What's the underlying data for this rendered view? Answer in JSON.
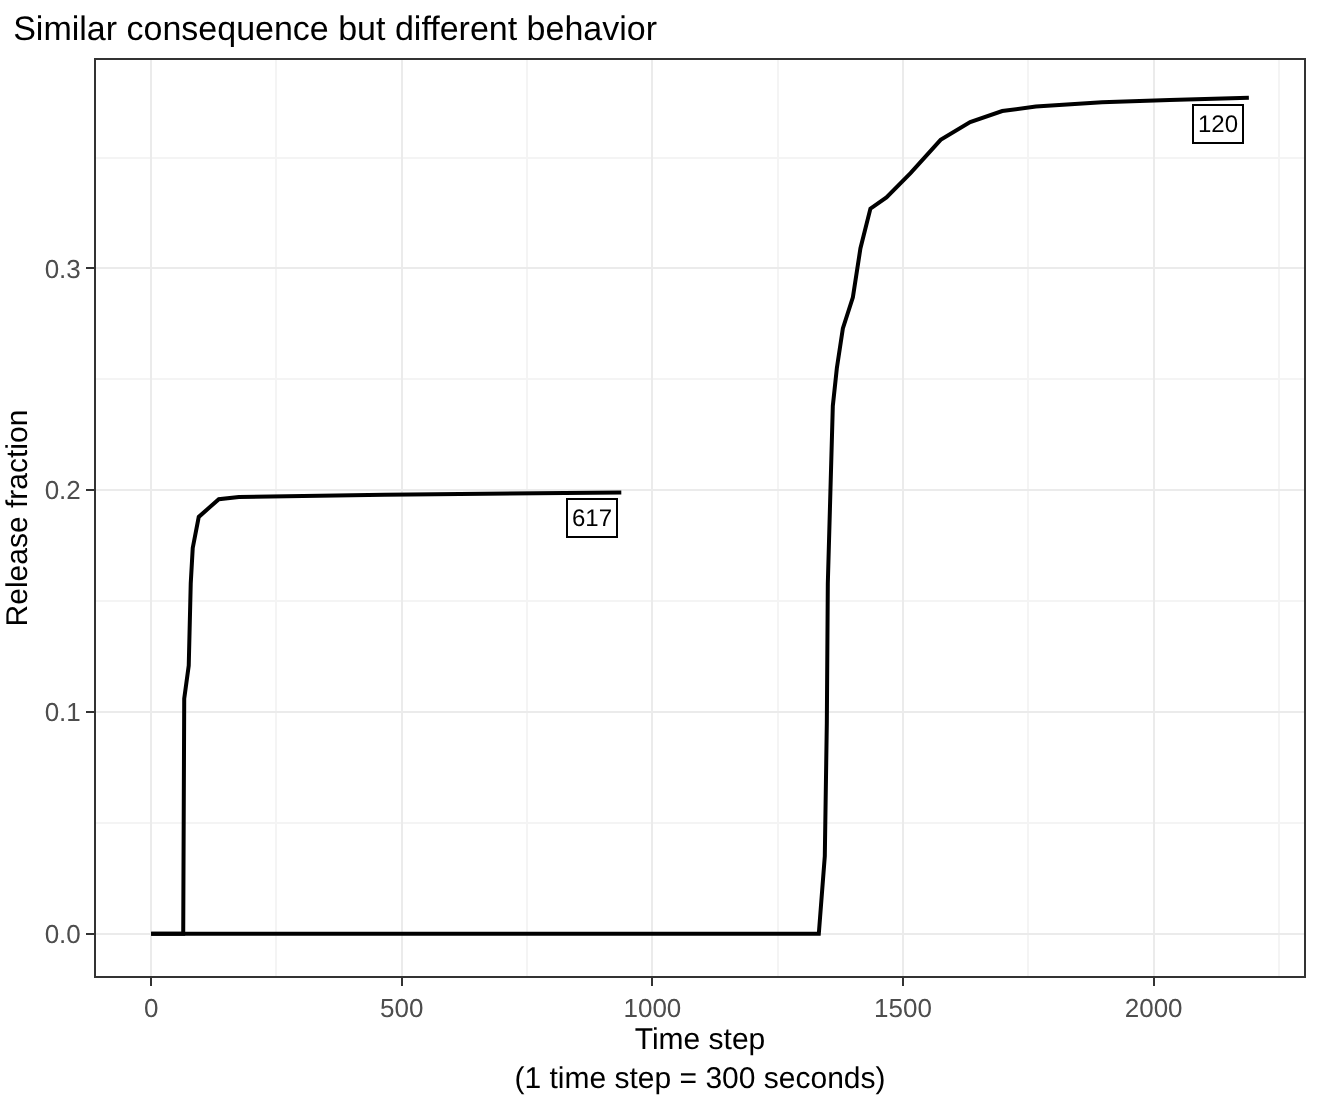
{
  "chart_data": {
    "type": "line",
    "title": "Similar consequence but different behavior",
    "xlabel": "Time step\n(1 time step = 300 seconds)",
    "ylabel": "Release fraction",
    "series": [
      {
        "name": "617",
        "color": "#000000",
        "x": [
          0,
          64,
          66,
          75,
          79,
          83,
          95,
          135,
          175,
          466,
          938
        ],
        "values": [
          0,
          0,
          0.106,
          0.121,
          0.158,
          0.174,
          0.188,
          0.196,
          0.197,
          0.198,
          0.199
        ]
      },
      {
        "name": "120",
        "color": "#000000",
        "x": [
          0,
          1332,
          1344,
          1348,
          1350,
          1360,
          1368,
          1380,
          1400,
          1415,
          1435,
          1467,
          1515,
          1575,
          1634,
          1698,
          1765,
          1897,
          2032,
          2190
        ],
        "values": [
          0,
          0,
          0.035,
          0.095,
          0.158,
          0.238,
          0.255,
          0.273,
          0.287,
          0.309,
          0.327,
          0.332,
          0.343,
          0.358,
          0.366,
          0.371,
          0.373,
          0.375,
          0.376,
          0.377
        ]
      }
    ],
    "xlim": [
      -110,
      2300
    ],
    "ylim": [
      -0.019,
      0.394
    ],
    "xticks": [
      0,
      500,
      1000,
      1500,
      2000
    ],
    "yticks": [
      {
        "value": 0,
        "label": "0.0"
      },
      0.1,
      0.2,
      0.3
    ],
    "grid": true,
    "legend": false,
    "marker": "none",
    "line_style": "solid"
  }
}
